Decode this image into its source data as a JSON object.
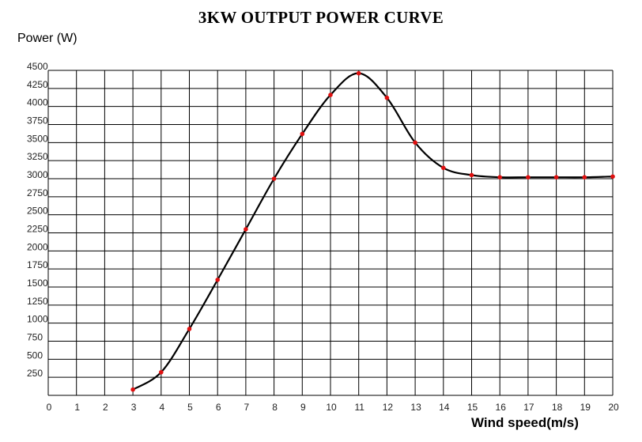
{
  "chart_data": {
    "type": "line",
    "title": "3KW OUTPUT POWER CURVE",
    "ylabel": "Power (W)",
    "xlabel": "Wind speed(m/s)",
    "xlim": [
      0,
      20
    ],
    "ylim": [
      0,
      4500
    ],
    "x_ticks": [
      "0",
      "1",
      "2",
      "3",
      "4",
      "5",
      "6",
      "7",
      "8",
      "9",
      "10",
      "11",
      "12",
      "13",
      "14",
      "15",
      "16",
      "17",
      "18",
      "19",
      "20"
    ],
    "y_ticks": [
      "250",
      "500",
      "750",
      "1000",
      "1250",
      "1500",
      "1750",
      "2000",
      "2250",
      "2500",
      "2750",
      "3000",
      "3250",
      "3500",
      "3750",
      "4000",
      "4250",
      "4500"
    ],
    "grid": true,
    "colors": {
      "line": "#000000",
      "points": "#e01010",
      "grid": "#000000"
    },
    "series": [
      {
        "x": [
          3,
          4,
          5,
          6,
          7,
          8,
          9,
          10,
          11,
          12,
          13,
          14,
          15,
          16,
          17,
          18,
          19,
          20
        ],
        "y": [
          80,
          320,
          920,
          1600,
          2300,
          3000,
          3620,
          4160,
          4460,
          4120,
          3500,
          3150,
          3050,
          3020,
          3020,
          3020,
          3020,
          3030
        ]
      }
    ]
  }
}
